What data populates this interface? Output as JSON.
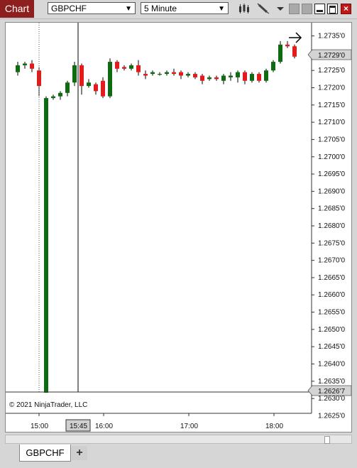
{
  "window": {
    "tab_label": "Chart"
  },
  "toolbar": {
    "instrument": "GBPCHF",
    "interval": "5 Minute",
    "icons": [
      "bar-type-icon",
      "drawing-tool-icon",
      "dropdown-arrow-icon",
      "gray-square-icon",
      "gray-square-icon",
      "minimize-icon",
      "maximize-icon",
      "close-icon"
    ]
  },
  "chart": {
    "copyright": "© 2021 NinjaTrader, LLC",
    "selected_time_label": "15:45",
    "current_price_label": "1.2729'0",
    "low_price_label": "1.2626'7",
    "colors": {
      "up": "#0f6b12",
      "down": "#e31b1b",
      "wick": "#000000",
      "price_marker_bg": "#d4d4d4"
    }
  },
  "bottom": {
    "instrument_tab": "GBPCHF",
    "add_tab": "+"
  },
  "chart_data": {
    "type": "candlestick",
    "symbol": "GBPCHF",
    "interval": "5 Minute",
    "ylim": [
      1.2622,
      1.2738
    ],
    "y_ticks": [
      "1.2735'0",
      "1.2730'0",
      "1.2725'0",
      "1.2720'0",
      "1.2715'0",
      "1.2710'0",
      "1.2705'0",
      "1.2700'0",
      "1.2695'0",
      "1.2690'0",
      "1.2685'0",
      "1.2680'0",
      "1.2675'0",
      "1.2670'0",
      "1.2665'0",
      "1.2660'0",
      "1.2655'0",
      "1.2650'0",
      "1.2645'0",
      "1.2640'0",
      "1.2635'0",
      "1.2630'0",
      "1.2625'0"
    ],
    "x_ticks": [
      "15:00",
      "15:45",
      "16:00",
      "17:00",
      "18:00"
    ],
    "candles": [
      {
        "time": "14:45",
        "open": 1.27245,
        "high": 1.27275,
        "low": 1.27235,
        "close": 1.27265
      },
      {
        "time": "14:50",
        "open": 1.27265,
        "high": 1.27275,
        "low": 1.27255,
        "close": 1.2727
      },
      {
        "time": "14:55",
        "open": 1.2727,
        "high": 1.2728,
        "low": 1.27245,
        "close": 1.27255
      },
      {
        "time": "15:00",
        "open": 1.2725,
        "high": 1.2726,
        "low": 1.27175,
        "close": 1.27205
      },
      {
        "time": "15:05",
        "open": 1.26267,
        "high": 1.27175,
        "low": 1.26267,
        "close": 1.2717
      },
      {
        "time": "15:10",
        "open": 1.2717,
        "high": 1.2718,
        "low": 1.27165,
        "close": 1.27175
      },
      {
        "time": "15:15",
        "open": 1.27175,
        "high": 1.2719,
        "low": 1.27165,
        "close": 1.27185
      },
      {
        "time": "15:20",
        "open": 1.27185,
        "high": 1.2722,
        "low": 1.27175,
        "close": 1.27215
      },
      {
        "time": "15:25",
        "open": 1.27215,
        "high": 1.27275,
        "low": 1.27205,
        "close": 1.27265
      },
      {
        "time": "15:30",
        "open": 1.27265,
        "high": 1.2727,
        "low": 1.2718,
        "close": 1.27205
      },
      {
        "time": "15:35",
        "open": 1.27205,
        "high": 1.27225,
        "low": 1.272,
        "close": 1.27215
      },
      {
        "time": "15:40",
        "open": 1.2721,
        "high": 1.27215,
        "low": 1.2718,
        "close": 1.2719
      },
      {
        "time": "15:45",
        "open": 1.2722,
        "high": 1.2723,
        "low": 1.2717,
        "close": 1.27175
      },
      {
        "time": "15:50",
        "open": 1.27175,
        "high": 1.27285,
        "low": 1.2717,
        "close": 1.27275
      },
      {
        "time": "15:55",
        "open": 1.27275,
        "high": 1.2728,
        "low": 1.27245,
        "close": 1.27255
      },
      {
        "time": "16:00",
        "open": 1.2726,
        "high": 1.27265,
        "low": 1.2725,
        "close": 1.27255
      },
      {
        "time": "16:05",
        "open": 1.27255,
        "high": 1.2727,
        "low": 1.2725,
        "close": 1.27265
      },
      {
        "time": "16:10",
        "open": 1.27265,
        "high": 1.2728,
        "low": 1.27235,
        "close": 1.27245
      },
      {
        "time": "16:15",
        "open": 1.2724,
        "high": 1.2725,
        "low": 1.27225,
        "close": 1.27235
      },
      {
        "time": "16:20",
        "open": 1.2724,
        "high": 1.2725,
        "low": 1.27235,
        "close": 1.27245
      },
      {
        "time": "16:25",
        "open": 1.2724,
        "high": 1.27245,
        "low": 1.27235,
        "close": 1.2724
      },
      {
        "time": "16:30",
        "open": 1.2724,
        "high": 1.2725,
        "low": 1.27235,
        "close": 1.27245
      },
      {
        "time": "16:35",
        "open": 1.27245,
        "high": 1.27255,
        "low": 1.27235,
        "close": 1.2724
      },
      {
        "time": "16:40",
        "open": 1.27245,
        "high": 1.2725,
        "low": 1.27225,
        "close": 1.27235
      },
      {
        "time": "16:45",
        "open": 1.27235,
        "high": 1.27245,
        "low": 1.2723,
        "close": 1.2724
      },
      {
        "time": "16:50",
        "open": 1.2724,
        "high": 1.27245,
        "low": 1.27225,
        "close": 1.2723
      },
      {
        "time": "16:55",
        "open": 1.27235,
        "high": 1.2724,
        "low": 1.2721,
        "close": 1.2722
      },
      {
        "time": "17:00",
        "open": 1.27225,
        "high": 1.27235,
        "low": 1.2722,
        "close": 1.2723
      },
      {
        "time": "17:05",
        "open": 1.2723,
        "high": 1.27235,
        "low": 1.2722,
        "close": 1.27225
      },
      {
        "time": "17:10",
        "open": 1.2722,
        "high": 1.2724,
        "low": 1.2721,
        "close": 1.27235
      },
      {
        "time": "17:15",
        "open": 1.2723,
        "high": 1.27245,
        "low": 1.2722,
        "close": 1.27235
      },
      {
        "time": "17:20",
        "open": 1.2723,
        "high": 1.2725,
        "low": 1.27215,
        "close": 1.27245
      },
      {
        "time": "17:25",
        "open": 1.27245,
        "high": 1.2725,
        "low": 1.2721,
        "close": 1.2722
      },
      {
        "time": "17:30",
        "open": 1.2722,
        "high": 1.27245,
        "low": 1.27215,
        "close": 1.2724
      },
      {
        "time": "17:35",
        "open": 1.2724,
        "high": 1.27245,
        "low": 1.27215,
        "close": 1.2722
      },
      {
        "time": "17:40",
        "open": 1.2722,
        "high": 1.27255,
        "low": 1.27215,
        "close": 1.2725
      },
      {
        "time": "17:45",
        "open": 1.2725,
        "high": 1.2728,
        "low": 1.27245,
        "close": 1.27275
      },
      {
        "time": "17:50",
        "open": 1.27275,
        "high": 1.27335,
        "low": 1.2727,
        "close": 1.27325
      },
      {
        "time": "17:55",
        "open": 1.27325,
        "high": 1.27335,
        "low": 1.27315,
        "close": 1.2732
      },
      {
        "time": "18:00",
        "open": 1.2732,
        "high": 1.27325,
        "low": 1.27285,
        "close": 1.2729
      }
    ]
  }
}
